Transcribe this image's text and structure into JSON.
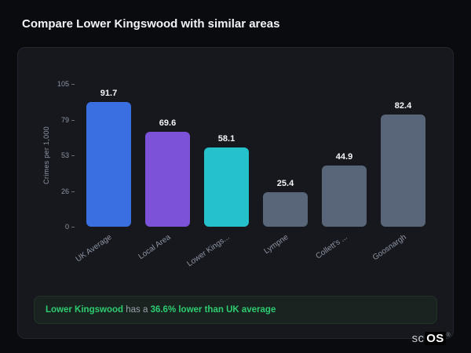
{
  "page_title": "Compare Lower Kingswood with similar areas",
  "chart_data": {
    "type": "bar",
    "title": "Compare Lower Kingswood with similar areas",
    "xlabel": "",
    "ylabel": "Crimes per 1,000",
    "ylim": [
      0,
      105
    ],
    "ytick_labels": [
      "105",
      "79",
      "53",
      "26",
      "0"
    ],
    "categories": [
      "UK Average",
      "Local Area",
      "Lower Kings...",
      "Lympne",
      "Collett's ...",
      "Goosnargh"
    ],
    "values": [
      91.7,
      69.6,
      58.1,
      25.4,
      44.9,
      82.4
    ],
    "bar_colors": [
      "#3a6fe2",
      "#7b52d8",
      "#26c2cb",
      "#59667a",
      "#59667a",
      "#59667a"
    ],
    "value_labels": [
      "91.7",
      "69.6",
      "58.1",
      "25.4",
      "44.9",
      "82.4"
    ],
    "grid": false,
    "legend": false
  },
  "callout": {
    "subject": "Lower Kingswood",
    "connector": " has a ",
    "highlight": "36.6% lower than UK average",
    "accent_color": "#2ecc71"
  },
  "logo": {
    "prefix": "sc",
    "suffix": "OS",
    "registered": "®"
  }
}
